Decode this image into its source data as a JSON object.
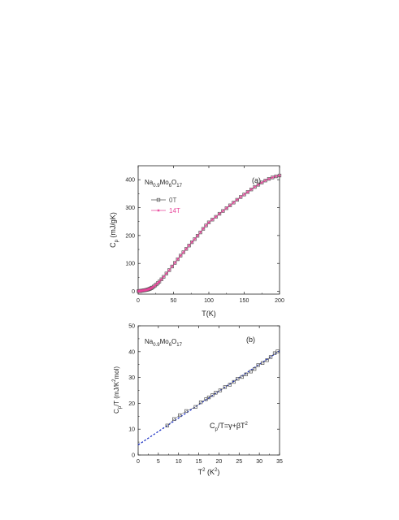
{
  "chart_data": [
    {
      "id": "a",
      "type": "line",
      "panel_label": "(a)",
      "compound": {
        "base": "Na",
        "s1": "0.9",
        "mid": "Mo",
        "s2": "6",
        "mid2": "O",
        "s3": "17"
      },
      "xlabel": "T(K)",
      "ylabel": {
        "main": "C",
        "sub": "p",
        "rest": " (mJ/gK)"
      },
      "xlim": [
        0,
        200
      ],
      "ylim": [
        -10,
        450
      ],
      "xticks": [
        0,
        50,
        100,
        150,
        200
      ],
      "yticks": [
        0,
        100,
        200,
        300,
        400
      ],
      "legend_position": "top-left",
      "series": [
        {
          "name": "0T",
          "color": "#555555",
          "marker": "square",
          "x": [
            0.5,
            1,
            1.5,
            2,
            2.5,
            3,
            3.5,
            4,
            5,
            6,
            7,
            8,
            9,
            10,
            11,
            12,
            13,
            14,
            15,
            16,
            17,
            18,
            19,
            20,
            22,
            24,
            26,
            28,
            30,
            33,
            36,
            40,
            44,
            48,
            52,
            56,
            60,
            64,
            68,
            72,
            76,
            80,
            84,
            88,
            92,
            96,
            100,
            105,
            110,
            115,
            120,
            125,
            130,
            135,
            140,
            145,
            150,
            155,
            160,
            165,
            170,
            175,
            180,
            185,
            190,
            195,
            200
          ],
          "y": [
            0.5,
            0.6,
            0.8,
            1,
            1.2,
            1.4,
            1.6,
            1.8,
            2.2,
            2.6,
            3,
            3.4,
            3.8,
            4.3,
            4.8,
            5.4,
            6,
            6.8,
            7.6,
            8.6,
            9.6,
            10.8,
            12.2,
            13.6,
            17,
            21,
            25,
            30,
            35,
            43,
            52,
            64,
            76,
            89,
            102,
            115,
            128,
            140,
            152,
            164,
            176,
            187,
            199,
            211,
            224,
            236,
            247,
            257,
            267,
            278,
            288,
            298,
            308,
            318,
            328,
            338,
            347,
            356,
            365,
            374,
            382,
            390,
            397,
            403,
            408,
            412,
            415
          ]
        },
        {
          "name": "14T",
          "color": "#e8449a",
          "marker": "star",
          "x": [
            0.5,
            1,
            1.5,
            2,
            2.5,
            3,
            3.5,
            4,
            5,
            6,
            7,
            8,
            9,
            10,
            11,
            12,
            13,
            14,
            15,
            16,
            17,
            18,
            19,
            20,
            22,
            24,
            26,
            28,
            30,
            33,
            36,
            40,
            44,
            48,
            52,
            56,
            60,
            64,
            68,
            72,
            76,
            80,
            84,
            88,
            92,
            96,
            100,
            105,
            110,
            115,
            120,
            125,
            130,
            135,
            140,
            145,
            150,
            155,
            160,
            165,
            170,
            175,
            180,
            185,
            190,
            195,
            200
          ],
          "y": [
            0.5,
            0.6,
            0.8,
            1,
            1.2,
            1.4,
            1.6,
            1.8,
            2.2,
            2.6,
            3,
            3.4,
            3.8,
            4.3,
            4.8,
            5.4,
            6,
            6.8,
            7.6,
            8.6,
            9.6,
            10.8,
            12.2,
            13.6,
            17,
            21,
            25,
            30,
            35,
            43,
            52,
            64,
            76,
            89,
            102,
            115,
            128,
            140,
            152,
            164,
            176,
            187,
            199,
            211,
            224,
            236,
            247,
            257,
            267,
            278,
            288,
            298,
            308,
            318,
            328,
            338,
            347,
            356,
            365,
            374,
            382,
            390,
            397,
            403,
            408,
            412,
            415
          ]
        }
      ]
    },
    {
      "id": "b",
      "type": "scatter",
      "panel_label": "(b)",
      "compound": {
        "base": "Na",
        "s1": "0.9",
        "mid": "Mo",
        "s2": "6",
        "mid2": "O",
        "s3": "17"
      },
      "xlabel": {
        "main": "T",
        "sup": "2",
        "rest": " (K",
        "sup2": "2",
        "end": ")"
      },
      "ylabel": {
        "main": "C",
        "sub": "p",
        "rest": "/T (mJ/K",
        "sup": "2",
        "end": "mol)"
      },
      "xlim": [
        0,
        35
      ],
      "ylim": [
        0,
        50
      ],
      "xticks": [
        0,
        5,
        10,
        15,
        20,
        25,
        30,
        35
      ],
      "yticks": [
        0,
        10,
        20,
        30,
        40,
        50
      ],
      "annotation": {
        "a": "C",
        "sub": "p",
        "b": "/T=γ+βT",
        "sup": "2"
      },
      "fit": {
        "intercept": 3.9,
        "slope": 1.04,
        "color": "#1a2fc4",
        "x_range": [
          0,
          35
        ]
      },
      "series": [
        {
          "name": "",
          "color": "#555555",
          "marker": "square",
          "x": [
            7.2,
            8.9,
            10.3,
            11.9,
            14.2,
            15.5,
            16.8,
            17.5,
            18.4,
            19.2,
            20.3,
            21.5,
            22.7,
            23.7,
            24.6,
            25.7,
            26.7,
            27.9,
            28.8,
            29.7,
            30.8,
            31.9,
            32.8,
            33.8,
            34.5
          ],
          "y": [
            11.4,
            13.9,
            15.4,
            17,
            18.6,
            20.4,
            21.6,
            22.3,
            23.2,
            24.1,
            25,
            26.3,
            27.2,
            28.3,
            29.5,
            30.2,
            31.2,
            32.3,
            33.3,
            34.8,
            35.6,
            36.7,
            37.9,
            39.4,
            40.1
          ]
        }
      ]
    }
  ]
}
